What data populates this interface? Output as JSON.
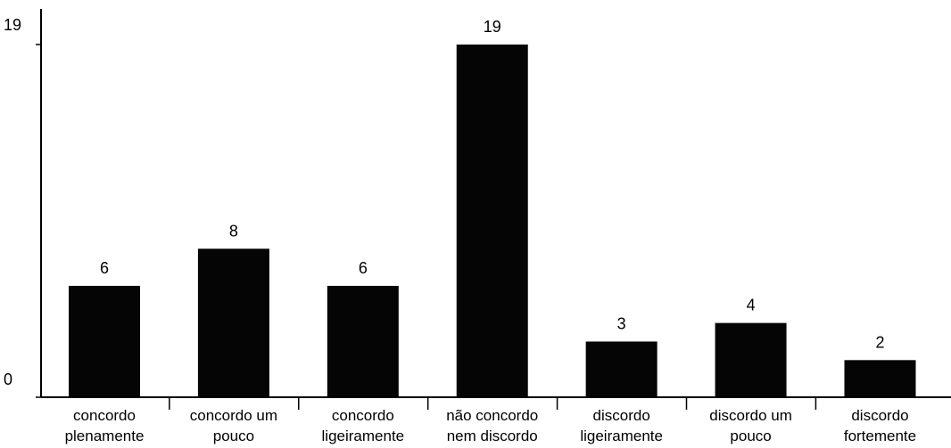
{
  "chart_data": {
    "type": "bar",
    "title": "",
    "xlabel": "",
    "ylabel": "",
    "categories": [
      [
        "concordo",
        "plenamente"
      ],
      [
        "concordo um",
        "pouco"
      ],
      [
        "concordo",
        "ligeiramente"
      ],
      [
        "não concordo",
        "nem discordo"
      ],
      [
        "discordo",
        "ligeiramente"
      ],
      [
        "discordo um",
        "pouco"
      ],
      [
        "discordo",
        "fortemente"
      ]
    ],
    "values": [
      6,
      8,
      6,
      19,
      3,
      4,
      2
    ],
    "value_labels": [
      "6",
      "8",
      "6",
      "19",
      "3",
      "4",
      "2"
    ],
    "ylim": [
      0,
      19
    ],
    "y_ticks": [
      {
        "value": 0,
        "label": "0"
      },
      {
        "value": 19,
        "label": "19"
      }
    ],
    "grid": false,
    "legend": "none",
    "bar_color": "#050505"
  }
}
